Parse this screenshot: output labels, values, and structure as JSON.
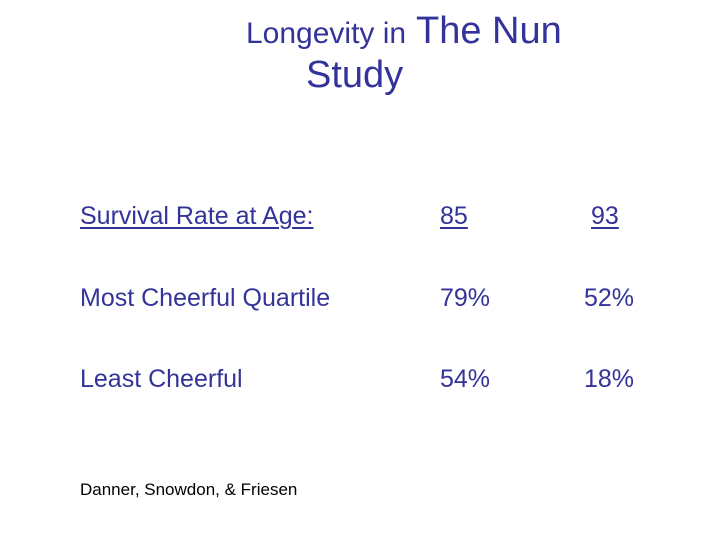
{
  "title": {
    "line1_part1": "Longevity in",
    "line1_part2": " The Nun",
    "line2": "Study"
  },
  "table": {
    "header": {
      "label": "Survival Rate at Age:",
      "col1": "85",
      "col2": "93"
    },
    "rows": [
      {
        "label": "Most Cheerful Quartile",
        "col1": "79%",
        "col2": "52%"
      },
      {
        "label": "Least Cheerful",
        "col1": "54%",
        "col2": "18%"
      }
    ]
  },
  "footer": {
    "citation": "Danner, Snowdon, & Friesen"
  },
  "colors": {
    "text_accent": "#333399",
    "footer_text": "#000000",
    "background": "#ffffff"
  }
}
